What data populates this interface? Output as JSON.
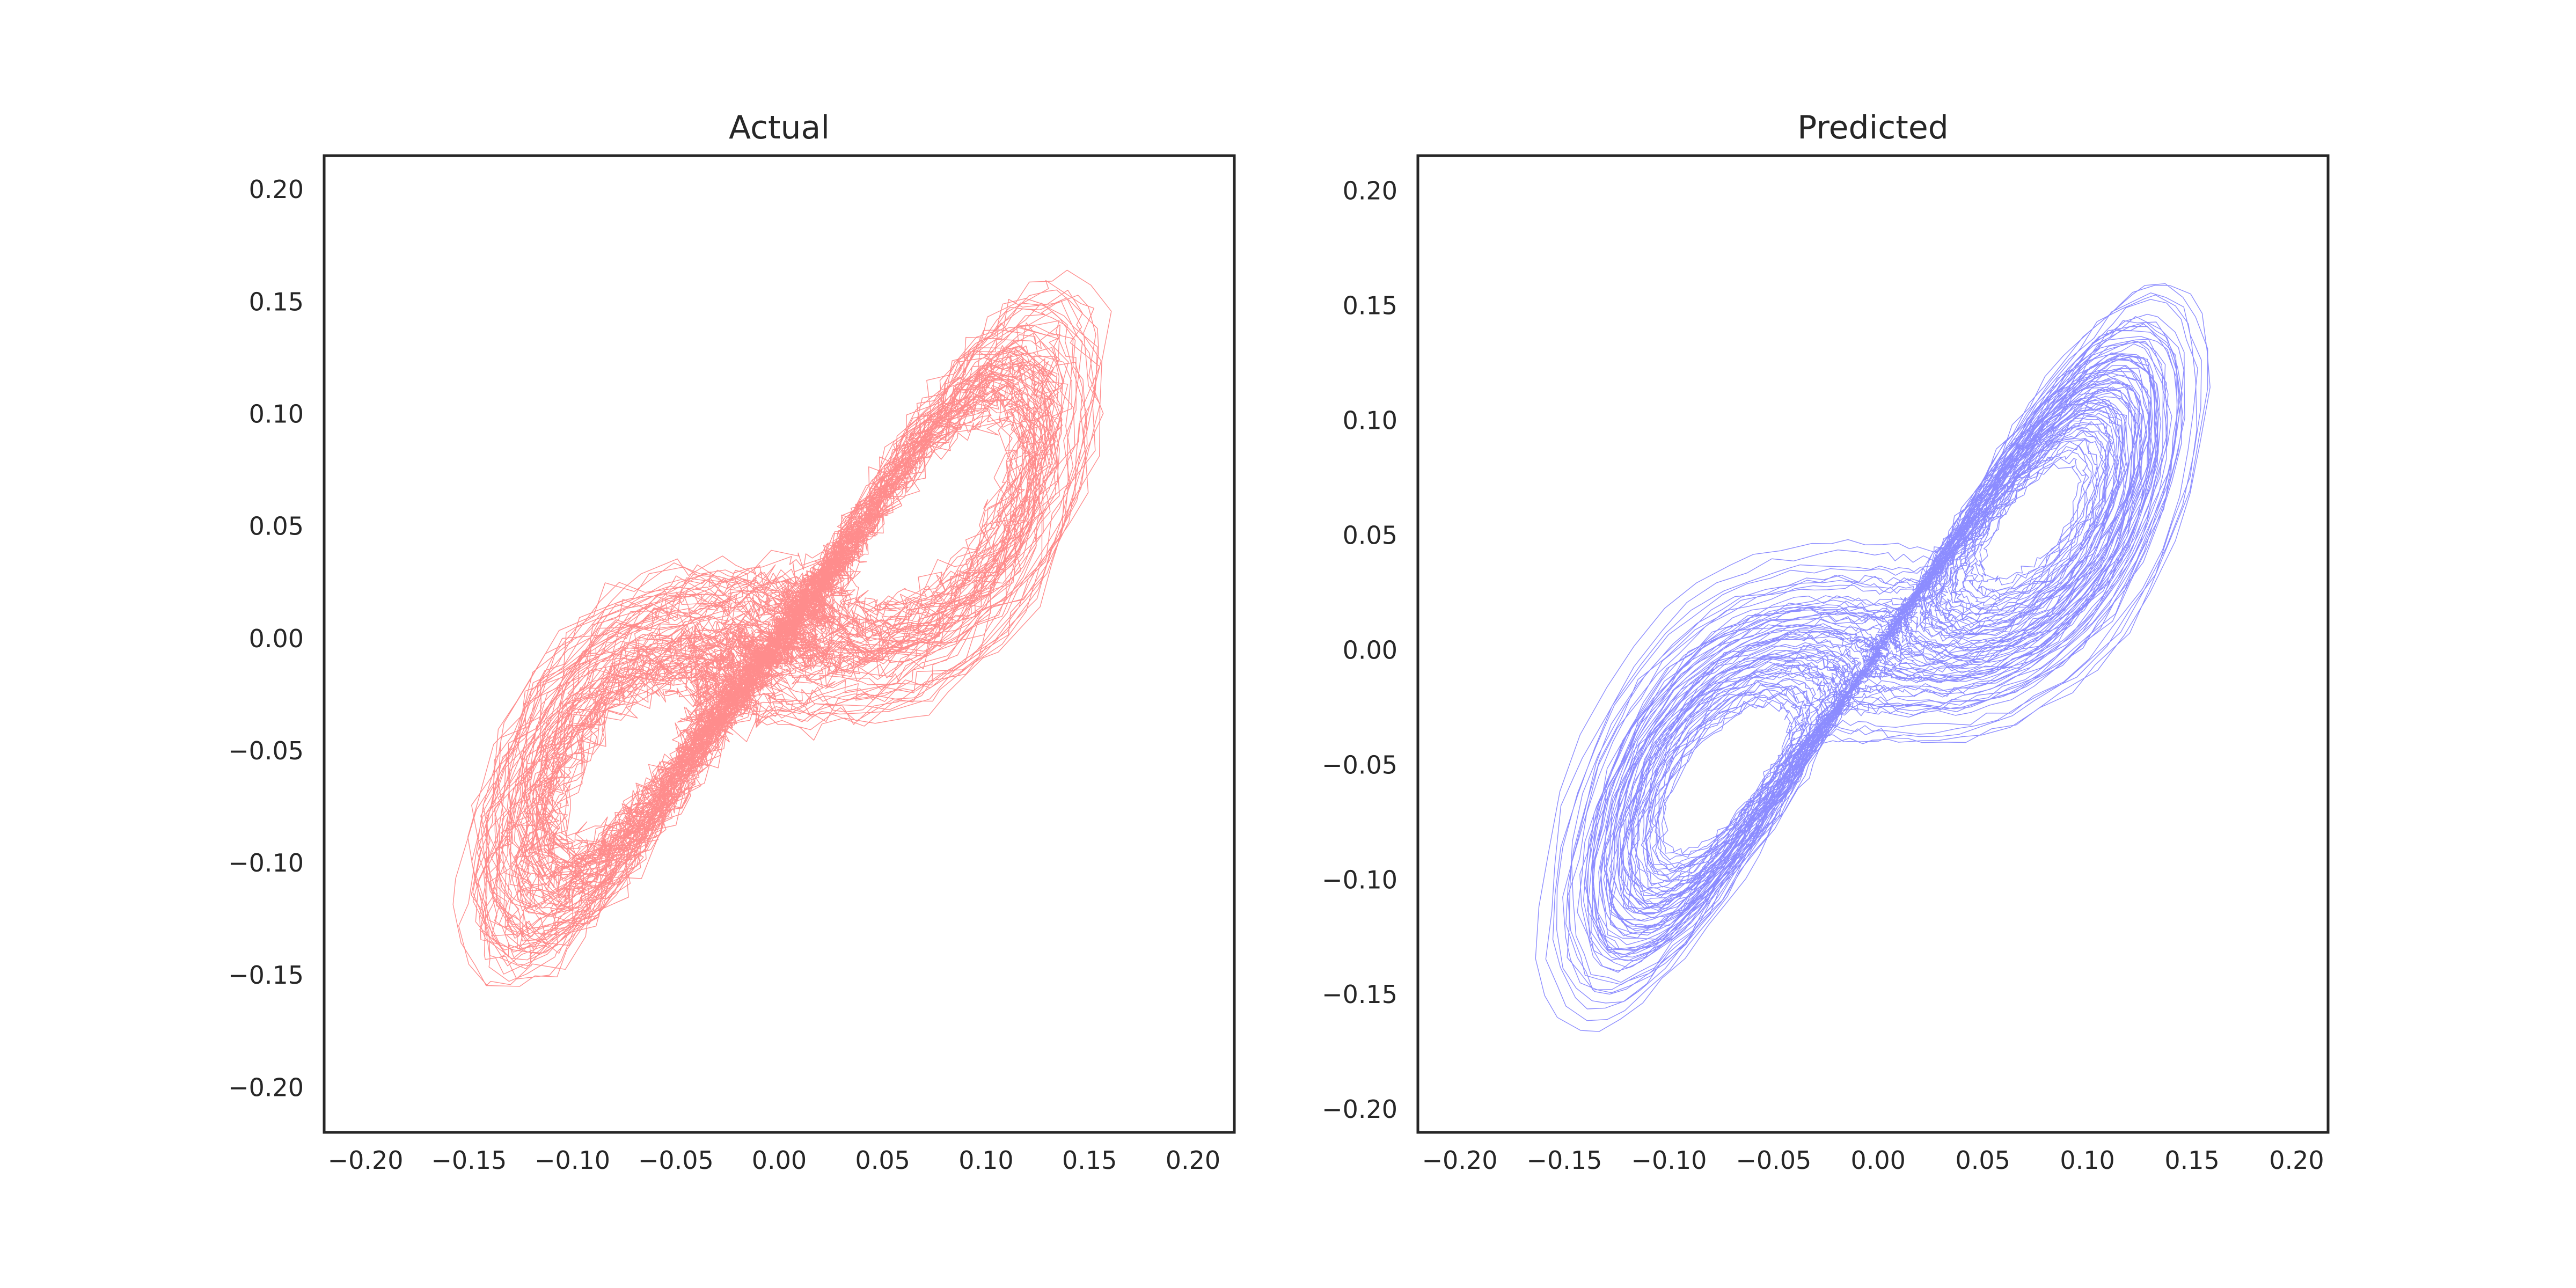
{
  "chart_data": [
    {
      "type": "line",
      "title": "Actual",
      "xlabel": "",
      "ylabel": "",
      "xlim": [
        -0.22,
        0.22
      ],
      "ylim": [
        -0.22,
        0.2151
      ],
      "xticks": [
        -0.2,
        -0.15,
        -0.1,
        -0.05,
        0.0,
        0.05,
        0.1,
        0.15,
        0.2
      ],
      "xtick_labels": [
        "−0.20",
        "−0.15",
        "−0.10",
        "−0.05",
        "0.00",
        "0.05",
        "0.10",
        "0.15",
        "0.20"
      ],
      "yticks": [
        0.2,
        0.15,
        0.1,
        0.05,
        0.0,
        -0.05,
        -0.1,
        -0.15,
        -0.2
      ],
      "ytick_labels": [
        "0.20",
        "0.15",
        "0.10",
        "0.05",
        "0.00",
        "−0.05",
        "−0.10",
        "−0.15",
        "−0.20"
      ],
      "color": "#ff0000",
      "grid": false,
      "description_of_data": {
        "shape": "two-lobed figure-eight trajectory",
        "lobe_centers": [
          [
            0.09,
            0.1
          ],
          [
            -0.09,
            -0.1
          ]
        ],
        "x_range": [
          -0.2,
          0.19
        ],
        "y_range": [
          -0.2,
          0.19
        ]
      }
    },
    {
      "type": "line",
      "title": "Predicted",
      "xlabel": "",
      "ylabel": "",
      "xlim": [
        -0.22,
        0.215
      ],
      "ylim": [
        -0.21,
        0.2153
      ],
      "xticks": [
        -0.2,
        -0.15,
        -0.1,
        -0.05,
        0.0,
        0.05,
        0.1,
        0.15,
        0.2
      ],
      "xtick_labels": [
        "−0.20",
        "−0.15",
        "−0.10",
        "−0.05",
        "0.00",
        "0.05",
        "0.10",
        "0.15",
        "0.20"
      ],
      "yticks": [
        0.2,
        0.15,
        0.1,
        0.05,
        0.0,
        -0.05,
        -0.1,
        -0.15,
        -0.2
      ],
      "ytick_labels": [
        "0.20",
        "0.15",
        "0.10",
        "0.05",
        "0.00",
        "−0.05",
        "−0.10",
        "−0.15",
        "−0.20"
      ],
      "color": "#0000ff",
      "grid": false,
      "description_of_data": {
        "shape": "two-lobed figure-eight trajectory",
        "lobe_centers": [
          [
            0.1,
            0.09
          ],
          [
            -0.09,
            -0.09
          ]
        ],
        "x_range": [
          -0.19,
          0.19
        ],
        "y_range": [
          -0.19,
          0.19
        ]
      }
    }
  ]
}
